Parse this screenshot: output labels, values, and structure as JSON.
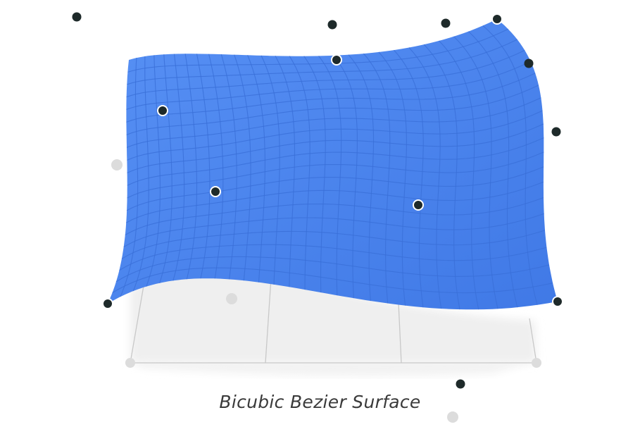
{
  "caption": "Bicubic Bezier Surface",
  "colors": {
    "surface_fill": "#4a86f0",
    "surface_grid": "#3a6fd8",
    "control_point": "#1e2a2a",
    "control_point_ring": "#ffffff",
    "ground_shadow": "#eeeeee",
    "ground_lines": "#c8c8c8",
    "faded_point": "#d9d9d9"
  },
  "grid": {
    "u_lines": 28,
    "v_lines": 20
  }
}
